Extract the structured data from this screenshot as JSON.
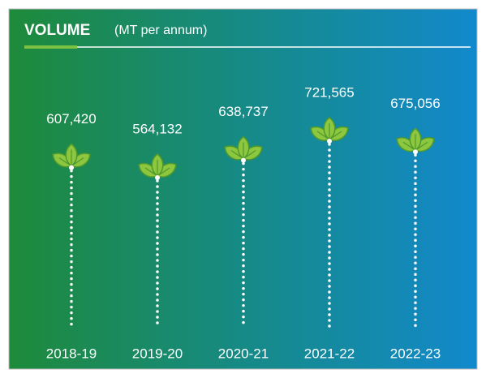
{
  "chart_data": {
    "type": "lollipop",
    "title": "VOLUME",
    "subtitle": "(MT per annum)",
    "categories": [
      "2018-19",
      "2019-20",
      "2020-21",
      "2021-22",
      "2022-23"
    ],
    "values": [
      607420,
      564132,
      638737,
      721565,
      675056
    ],
    "value_labels": [
      "607,420",
      "564,132",
      "638,737",
      "721,565",
      "675,056"
    ],
    "color": "#8dc63f"
  }
}
